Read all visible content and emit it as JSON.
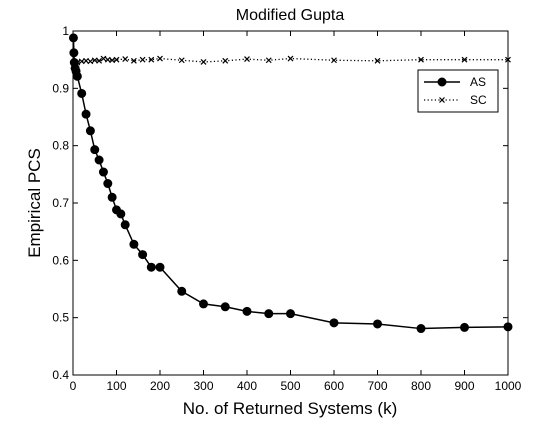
{
  "chart_data": {
    "type": "line",
    "title": "Modified Gupta",
    "xlabel": "No. of Returned Systems (k)",
    "ylabel": "Empirical PCS",
    "xlim": [
      0,
      1000
    ],
    "ylim": [
      0.4,
      1
    ],
    "xticks": [
      0,
      100,
      200,
      300,
      400,
      500,
      600,
      700,
      800,
      900,
      1000
    ],
    "yticks": [
      0.4,
      0.5,
      0.6,
      0.7,
      0.8,
      0.9,
      1
    ],
    "xtick_labels": [
      "0",
      "100",
      "200",
      "300",
      "400",
      "500",
      "600",
      "700",
      "800",
      "900",
      "1000"
    ],
    "ytick_labels": [
      "0.4",
      "0.5",
      "0.6",
      "0.7",
      "0.8",
      "0.9",
      "1"
    ],
    "grid": false,
    "legend_position": "top-right",
    "series": [
      {
        "name": "AS",
        "line_style": "solid",
        "marker": "filled-circle",
        "color": "#000000",
        "x": [
          1,
          2,
          3,
          5,
          7,
          10,
          20,
          30,
          40,
          50,
          60,
          70,
          80,
          90,
          100,
          110,
          120,
          140,
          160,
          180,
          200,
          250,
          300,
          350,
          400,
          450,
          500,
          600,
          700,
          800,
          900,
          1000
        ],
        "y": [
          0.988,
          0.962,
          0.945,
          0.935,
          0.93,
          0.921,
          0.891,
          0.855,
          0.826,
          0.793,
          0.775,
          0.754,
          0.734,
          0.71,
          0.688,
          0.681,
          0.662,
          0.628,
          0.61,
          0.588,
          0.588,
          0.546,
          0.524,
          0.519,
          0.511,
          0.507,
          0.507,
          0.491,
          0.489,
          0.481,
          0.483,
          0.484
        ]
      },
      {
        "name": "SC",
        "line_style": "dotted",
        "marker": "x",
        "color": "#000000",
        "x": [
          1,
          5,
          10,
          20,
          30,
          40,
          50,
          60,
          70,
          80,
          90,
          100,
          120,
          140,
          160,
          180,
          200,
          250,
          300,
          350,
          400,
          450,
          500,
          600,
          700,
          800,
          900,
          1000
        ],
        "y": [
          0.938,
          0.943,
          0.945,
          0.947,
          0.948,
          0.947,
          0.949,
          0.948,
          0.952,
          0.95,
          0.949,
          0.95,
          0.951,
          0.948,
          0.95,
          0.95,
          0.952,
          0.949,
          0.946,
          0.948,
          0.951,
          0.949,
          0.952,
          0.949,
          0.948,
          0.95,
          0.95,
          0.95
        ]
      }
    ]
  }
}
